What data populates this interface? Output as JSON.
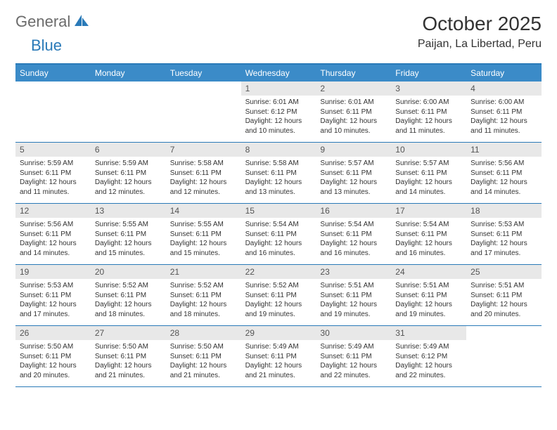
{
  "logo": {
    "part1": "General",
    "part2": "Blue"
  },
  "title": "October 2025",
  "location": "Paijan, La Libertad, Peru",
  "colors": {
    "header_bg": "#3b8bc8",
    "border": "#2a7ab8",
    "daynum_bg": "#e8e8e8",
    "text": "#333333",
    "logo_gray": "#6b6b6b",
    "logo_blue": "#2a7ab8"
  },
  "day_names": [
    "Sunday",
    "Monday",
    "Tuesday",
    "Wednesday",
    "Thursday",
    "Friday",
    "Saturday"
  ],
  "weeks": [
    [
      {
        "empty": true
      },
      {
        "empty": true
      },
      {
        "empty": true
      },
      {
        "day": "1",
        "sunrise": "Sunrise: 6:01 AM",
        "sunset": "Sunset: 6:12 PM",
        "daylight1": "Daylight: 12 hours",
        "daylight2": "and 10 minutes."
      },
      {
        "day": "2",
        "sunrise": "Sunrise: 6:01 AM",
        "sunset": "Sunset: 6:11 PM",
        "daylight1": "Daylight: 12 hours",
        "daylight2": "and 10 minutes."
      },
      {
        "day": "3",
        "sunrise": "Sunrise: 6:00 AM",
        "sunset": "Sunset: 6:11 PM",
        "daylight1": "Daylight: 12 hours",
        "daylight2": "and 11 minutes."
      },
      {
        "day": "4",
        "sunrise": "Sunrise: 6:00 AM",
        "sunset": "Sunset: 6:11 PM",
        "daylight1": "Daylight: 12 hours",
        "daylight2": "and 11 minutes."
      }
    ],
    [
      {
        "day": "5",
        "sunrise": "Sunrise: 5:59 AM",
        "sunset": "Sunset: 6:11 PM",
        "daylight1": "Daylight: 12 hours",
        "daylight2": "and 11 minutes."
      },
      {
        "day": "6",
        "sunrise": "Sunrise: 5:59 AM",
        "sunset": "Sunset: 6:11 PM",
        "daylight1": "Daylight: 12 hours",
        "daylight2": "and 12 minutes."
      },
      {
        "day": "7",
        "sunrise": "Sunrise: 5:58 AM",
        "sunset": "Sunset: 6:11 PM",
        "daylight1": "Daylight: 12 hours",
        "daylight2": "and 12 minutes."
      },
      {
        "day": "8",
        "sunrise": "Sunrise: 5:58 AM",
        "sunset": "Sunset: 6:11 PM",
        "daylight1": "Daylight: 12 hours",
        "daylight2": "and 13 minutes."
      },
      {
        "day": "9",
        "sunrise": "Sunrise: 5:57 AM",
        "sunset": "Sunset: 6:11 PM",
        "daylight1": "Daylight: 12 hours",
        "daylight2": "and 13 minutes."
      },
      {
        "day": "10",
        "sunrise": "Sunrise: 5:57 AM",
        "sunset": "Sunset: 6:11 PM",
        "daylight1": "Daylight: 12 hours",
        "daylight2": "and 14 minutes."
      },
      {
        "day": "11",
        "sunrise": "Sunrise: 5:56 AM",
        "sunset": "Sunset: 6:11 PM",
        "daylight1": "Daylight: 12 hours",
        "daylight2": "and 14 minutes."
      }
    ],
    [
      {
        "day": "12",
        "sunrise": "Sunrise: 5:56 AM",
        "sunset": "Sunset: 6:11 PM",
        "daylight1": "Daylight: 12 hours",
        "daylight2": "and 14 minutes."
      },
      {
        "day": "13",
        "sunrise": "Sunrise: 5:55 AM",
        "sunset": "Sunset: 6:11 PM",
        "daylight1": "Daylight: 12 hours",
        "daylight2": "and 15 minutes."
      },
      {
        "day": "14",
        "sunrise": "Sunrise: 5:55 AM",
        "sunset": "Sunset: 6:11 PM",
        "daylight1": "Daylight: 12 hours",
        "daylight2": "and 15 minutes."
      },
      {
        "day": "15",
        "sunrise": "Sunrise: 5:54 AM",
        "sunset": "Sunset: 6:11 PM",
        "daylight1": "Daylight: 12 hours",
        "daylight2": "and 16 minutes."
      },
      {
        "day": "16",
        "sunrise": "Sunrise: 5:54 AM",
        "sunset": "Sunset: 6:11 PM",
        "daylight1": "Daylight: 12 hours",
        "daylight2": "and 16 minutes."
      },
      {
        "day": "17",
        "sunrise": "Sunrise: 5:54 AM",
        "sunset": "Sunset: 6:11 PM",
        "daylight1": "Daylight: 12 hours",
        "daylight2": "and 16 minutes."
      },
      {
        "day": "18",
        "sunrise": "Sunrise: 5:53 AM",
        "sunset": "Sunset: 6:11 PM",
        "daylight1": "Daylight: 12 hours",
        "daylight2": "and 17 minutes."
      }
    ],
    [
      {
        "day": "19",
        "sunrise": "Sunrise: 5:53 AM",
        "sunset": "Sunset: 6:11 PM",
        "daylight1": "Daylight: 12 hours",
        "daylight2": "and 17 minutes."
      },
      {
        "day": "20",
        "sunrise": "Sunrise: 5:52 AM",
        "sunset": "Sunset: 6:11 PM",
        "daylight1": "Daylight: 12 hours",
        "daylight2": "and 18 minutes."
      },
      {
        "day": "21",
        "sunrise": "Sunrise: 5:52 AM",
        "sunset": "Sunset: 6:11 PM",
        "daylight1": "Daylight: 12 hours",
        "daylight2": "and 18 minutes."
      },
      {
        "day": "22",
        "sunrise": "Sunrise: 5:52 AM",
        "sunset": "Sunset: 6:11 PM",
        "daylight1": "Daylight: 12 hours",
        "daylight2": "and 19 minutes."
      },
      {
        "day": "23",
        "sunrise": "Sunrise: 5:51 AM",
        "sunset": "Sunset: 6:11 PM",
        "daylight1": "Daylight: 12 hours",
        "daylight2": "and 19 minutes."
      },
      {
        "day": "24",
        "sunrise": "Sunrise: 5:51 AM",
        "sunset": "Sunset: 6:11 PM",
        "daylight1": "Daylight: 12 hours",
        "daylight2": "and 19 minutes."
      },
      {
        "day": "25",
        "sunrise": "Sunrise: 5:51 AM",
        "sunset": "Sunset: 6:11 PM",
        "daylight1": "Daylight: 12 hours",
        "daylight2": "and 20 minutes."
      }
    ],
    [
      {
        "day": "26",
        "sunrise": "Sunrise: 5:50 AM",
        "sunset": "Sunset: 6:11 PM",
        "daylight1": "Daylight: 12 hours",
        "daylight2": "and 20 minutes."
      },
      {
        "day": "27",
        "sunrise": "Sunrise: 5:50 AM",
        "sunset": "Sunset: 6:11 PM",
        "daylight1": "Daylight: 12 hours",
        "daylight2": "and 21 minutes."
      },
      {
        "day": "28",
        "sunrise": "Sunrise: 5:50 AM",
        "sunset": "Sunset: 6:11 PM",
        "daylight1": "Daylight: 12 hours",
        "daylight2": "and 21 minutes."
      },
      {
        "day": "29",
        "sunrise": "Sunrise: 5:49 AM",
        "sunset": "Sunset: 6:11 PM",
        "daylight1": "Daylight: 12 hours",
        "daylight2": "and 21 minutes."
      },
      {
        "day": "30",
        "sunrise": "Sunrise: 5:49 AM",
        "sunset": "Sunset: 6:11 PM",
        "daylight1": "Daylight: 12 hours",
        "daylight2": "and 22 minutes."
      },
      {
        "day": "31",
        "sunrise": "Sunrise: 5:49 AM",
        "sunset": "Sunset: 6:12 PM",
        "daylight1": "Daylight: 12 hours",
        "daylight2": "and 22 minutes."
      },
      {
        "empty": true
      }
    ]
  ]
}
